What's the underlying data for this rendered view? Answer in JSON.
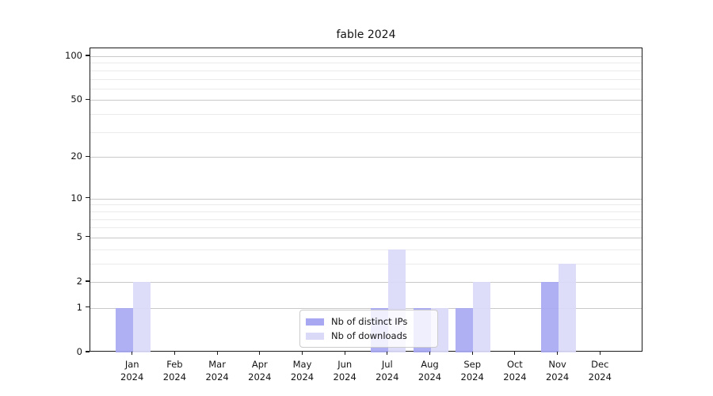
{
  "chart_data": {
    "type": "bar",
    "title": "fable 2024",
    "categories": [
      "Jan 2024",
      "Feb 2024",
      "Mar 2024",
      "Apr 2024",
      "May 2024",
      "Jun 2024",
      "Jul 2024",
      "Aug 2024",
      "Sep 2024",
      "Oct 2024",
      "Nov 2024",
      "Dec 2024"
    ],
    "series": [
      {
        "name": "Nb of distinct IPs",
        "color": "#a8a8f2",
        "values": [
          1,
          0,
          0,
          0,
          0,
          0,
          1,
          1,
          1,
          0,
          2,
          0
        ]
      },
      {
        "name": "Nb of downloads",
        "color": "#dadaf8",
        "values": [
          2,
          0,
          0,
          0,
          0,
          0,
          4,
          1,
          2,
          0,
          3,
          0
        ]
      }
    ],
    "xlabel": "",
    "ylabel": "",
    "y_axis": {
      "scale": "log1p",
      "ticks": [
        0,
        1,
        2,
        5,
        10,
        20,
        50,
        100
      ],
      "range": [
        0,
        113
      ]
    },
    "grid": {
      "minor_values": [
        3,
        4,
        6,
        7,
        8,
        9,
        30,
        40,
        60,
        70,
        80,
        90
      ],
      "major_color": "#c9c9c9",
      "minor_color": "#ebebeb"
    },
    "legend": {
      "position": "lower-center-inside",
      "entries": [
        "Nb of distinct IPs",
        "Nb of downloads"
      ]
    }
  }
}
